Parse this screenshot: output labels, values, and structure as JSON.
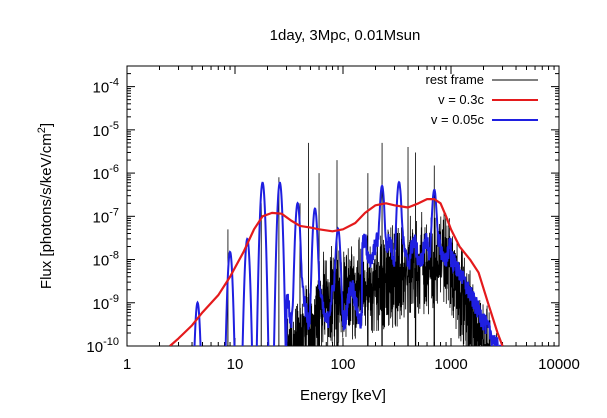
{
  "chart_data": {
    "type": "line",
    "title": "1day, 3Mpc, 0.01Msun",
    "xlabel": "Energy [keV]",
    "ylabel": "Flux [photons/s/keV/cm2]",
    "x_scale": "log",
    "y_scale": "log",
    "xlim": [
      1,
      10000
    ],
    "ylim": [
      1e-10,
      0.0003
    ],
    "x_ticks": [
      {
        "value": 1,
        "label": "1"
      },
      {
        "value": 10,
        "label": "10"
      },
      {
        "value": 100,
        "label": "100"
      },
      {
        "value": 1000,
        "label": "1000"
      },
      {
        "value": 10000,
        "label": "10000"
      }
    ],
    "y_ticks": [
      {
        "value": 1e-10,
        "base": "10",
        "exp": "-10"
      },
      {
        "value": 1e-09,
        "base": "10",
        "exp": "-9"
      },
      {
        "value": 1e-08,
        "base": "10",
        "exp": "-8"
      },
      {
        "value": 1e-07,
        "base": "10",
        "exp": "-7"
      },
      {
        "value": 1e-06,
        "base": "10",
        "exp": "-6"
      },
      {
        "value": 1e-05,
        "base": "10",
        "exp": "-5"
      },
      {
        "value": 0.0001,
        "base": "10",
        "exp": "-4"
      }
    ],
    "grid": false,
    "legend_position": "top-right",
    "series": [
      {
        "name": "rest frame",
        "color": "#000000",
        "style": "spiky line spectrum, dense forest 30-2500 keV",
        "peaks": [
          {
            "x": 8.6,
            "y": 5e-08
          },
          {
            "x": 17.5,
            "y": 2e-07
          },
          {
            "x": 25.5,
            "y": 8e-07
          },
          {
            "x": 40,
            "y": 2e-07
          },
          {
            "x": 48,
            "y": 5e-06
          },
          {
            "x": 60,
            "y": 1e-06
          },
          {
            "x": 88,
            "y": 2e-06
          },
          {
            "x": 170,
            "y": 1e-06
          },
          {
            "x": 230,
            "y": 5e-06
          },
          {
            "x": 400,
            "y": 4e-06
          },
          {
            "x": 470,
            "y": 3e-06
          },
          {
            "x": 700,
            "y": 1.5e-06
          }
        ]
      },
      {
        "name": "v = 0.3c",
        "color": "#e41a1c",
        "x": [
          2.5,
          3,
          4,
          5,
          7,
          9,
          12,
          15,
          18,
          22,
          27,
          33,
          40,
          50,
          60,
          80,
          100,
          130,
          160,
          200,
          250,
          300,
          400,
          500,
          600,
          700,
          800,
          900,
          1000,
          1200,
          1500,
          1800,
          2200,
          2700,
          3000
        ],
        "y": [
          1e-10,
          1.5e-10,
          3e-10,
          6e-10,
          1.5e-09,
          4e-09,
          1.5e-08,
          5e-08,
          1e-07,
          1.2e-07,
          1.15e-07,
          8e-08,
          6e-08,
          5.5e-08,
          5e-08,
          4.5e-08,
          5e-08,
          7e-08,
          1.2e-07,
          1.8e-07,
          2e-07,
          1.8e-07,
          1.6e-07,
          2e-07,
          2.5e-07,
          2.5e-07,
          2e-07,
          1e-07,
          5e-08,
          2e-08,
          1e-08,
          5e-09,
          1e-09,
          2e-10,
          1e-10
        ]
      },
      {
        "name": "v = 0.05c",
        "color": "#1f1fe0",
        "peaks": [
          {
            "x": 4.5,
            "y": 1e-09
          },
          {
            "x": 9,
            "y": 1.5e-08
          },
          {
            "x": 13,
            "y": 3e-08
          },
          {
            "x": 18,
            "y": 6e-07
          },
          {
            "x": 26,
            "y": 6e-07
          },
          {
            "x": 38,
            "y": 2e-07
          },
          {
            "x": 55,
            "y": 1.5e-07
          },
          {
            "x": 90,
            "y": 5e-08
          },
          {
            "x": 230,
            "y": 5e-07
          },
          {
            "x": 330,
            "y": 6e-07
          },
          {
            "x": 700,
            "y": 4e-07
          }
        ]
      }
    ]
  }
}
